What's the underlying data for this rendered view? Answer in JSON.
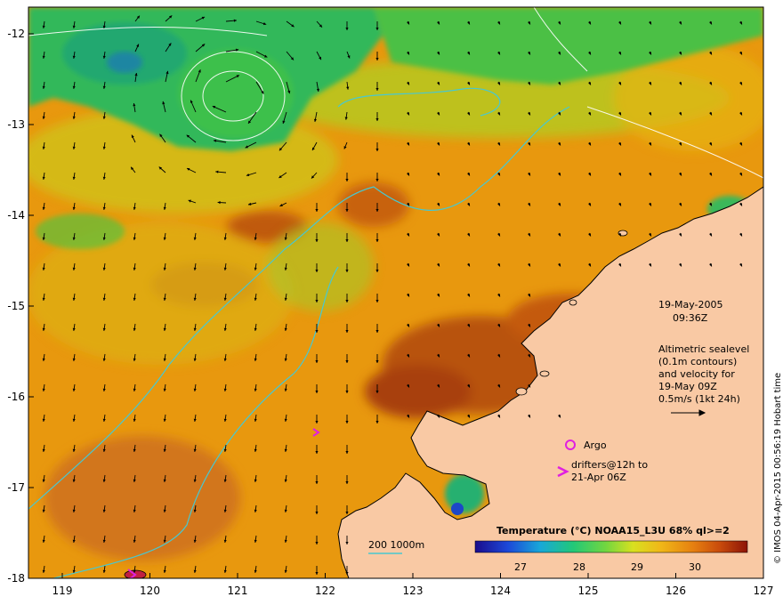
{
  "map": {
    "longitude_ticks": [
      "119",
      "120",
      "121",
      "122",
      "123",
      "124",
      "125",
      "126",
      "127"
    ],
    "latitude_ticks": [
      "-12",
      "-13",
      "-14",
      "-15",
      "-16",
      "-17",
      "-18"
    ],
    "date": "19-May-2005",
    "time": "09:36Z",
    "altimetry_note": [
      "Altimetric sealevel",
      "(0.1m contours)",
      "and velocity for",
      "19-May 09Z",
      "0.5m/s (1kt 24h)"
    ],
    "argo_label": "Argo",
    "drifters_label": [
      "drifters@12h to",
      "21-Apr 06Z"
    ],
    "depth_legend": "200  1000m",
    "colorbar_title": "Temperature (°C) NOAA15_L3U 68% ql>=2",
    "colorbar_ticks": [
      "27",
      "28",
      "29",
      "30"
    ],
    "credit": "© IMOS 04-Apr-2015 00:56:19 Hobart time",
    "colors": {
      "land": "#f9c9a4",
      "sst_warm": "#e8960e",
      "sst_hot": "#b0480c",
      "sst_cool": "#2eb85a",
      "contour": "#48c8d0",
      "marker": "#e020e0"
    }
  }
}
